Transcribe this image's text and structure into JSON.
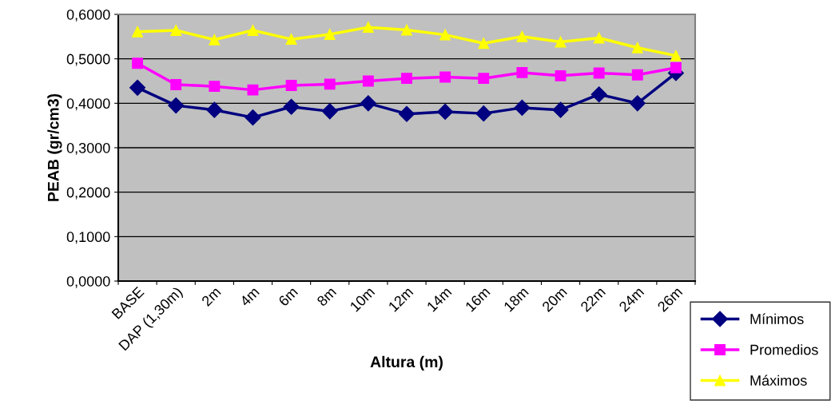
{
  "chart_data": {
    "type": "line",
    "xlabel": "Altura (m)",
    "ylabel": "PEAB (gr/cm3)",
    "categories": [
      "BASE",
      "DAP (1,30m)",
      "2m",
      "4m",
      "6m",
      "8m",
      "10m",
      "12m",
      "14m",
      "16m",
      "18m",
      "20m",
      "22m",
      "24m",
      "26m"
    ],
    "series": [
      {
        "name": "Mínimos",
        "color": "#000080",
        "marker": "diamond",
        "values": [
          0.435,
          0.395,
          0.385,
          0.368,
          0.392,
          0.382,
          0.4,
          0.376,
          0.381,
          0.377,
          0.39,
          0.385,
          0.42,
          0.4,
          0.468
        ]
      },
      {
        "name": "Promedios",
        "color": "#ff00ff",
        "marker": "square",
        "values": [
          0.49,
          0.442,
          0.438,
          0.43,
          0.44,
          0.443,
          0.45,
          0.456,
          0.459,
          0.456,
          0.469,
          0.462,
          0.468,
          0.464,
          0.48
        ]
      },
      {
        "name": "Máximos",
        "color": "#ffff00",
        "marker": "triangle",
        "values": [
          0.561,
          0.564,
          0.543,
          0.564,
          0.544,
          0.555,
          0.571,
          0.565,
          0.554,
          0.535,
          0.55,
          0.538,
          0.547,
          0.525,
          0.507
        ]
      }
    ],
    "ylim": [
      0,
      0.6
    ],
    "yticks": [
      {
        "value": 0,
        "label": "0,0000"
      },
      {
        "value": 0.1,
        "label": "0,1000"
      },
      {
        "value": 0.2,
        "label": "0,2000"
      },
      {
        "value": 0.3,
        "label": "0,3000"
      },
      {
        "value": 0.4,
        "label": "0,4000"
      },
      {
        "value": 0.5,
        "label": "0,5000"
      },
      {
        "value": 0.6,
        "label": "0,6000"
      }
    ],
    "grid": "y",
    "legend": "right",
    "line_style": "solid"
  }
}
